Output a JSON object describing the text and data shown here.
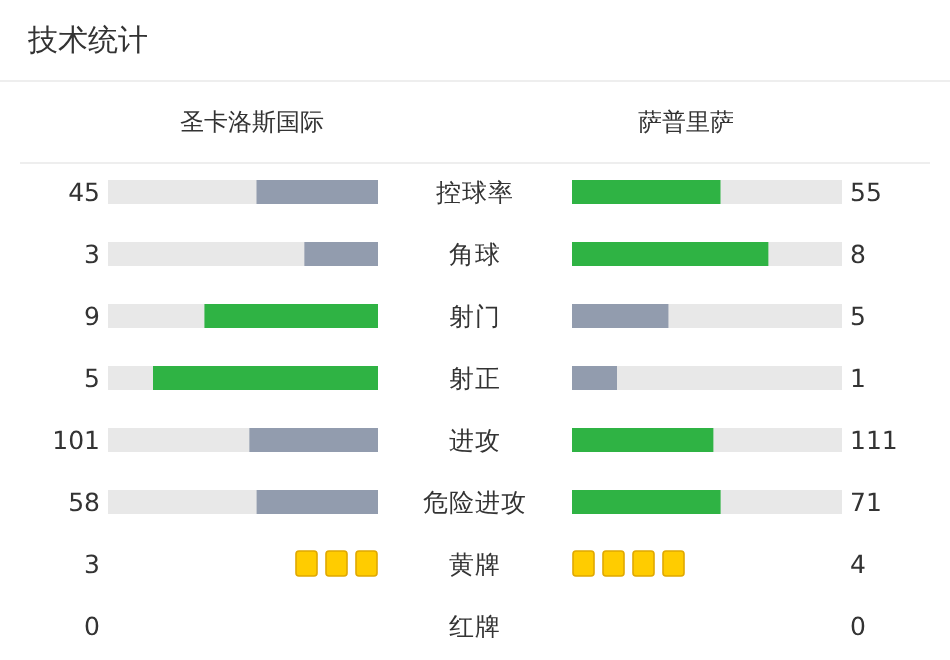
{
  "chart_data": [
    {
      "type": "other",
      "title": "技术统计",
      "categories": [
        "控球率",
        "角球",
        "射门",
        "射正",
        "进攻",
        "危险进攻"
      ],
      "data_labels": true,
      "series": [
        {
          "name": "圣卡洛斯国际",
          "colors": [
            "#929cae",
            "#929cae",
            "#2fb344",
            "#2fb344",
            "#929cae",
            "#929cae"
          ],
          "values": [
            45,
            3,
            9,
            5,
            101,
            58
          ]
        },
        {
          "name": "萨普里萨",
          "colors": [
            "#2fb344",
            "#2fb344",
            "#929cae",
            "#929cae",
            "#2fb344",
            "#2fb344"
          ],
          "values": [
            55,
            8,
            5,
            1,
            111,
            71
          ]
        }
      ]
    },
    {
      "type": "other",
      "categories": [
        "黄牌",
        "红牌"
      ],
      "data_labels": true,
      "series": [
        {
          "color": "#ffcc00",
          "values": [
            3,
            0
          ]
        },
        {
          "color": "#ffcc00",
          "values": [
            4,
            0
          ]
        }
      ]
    }
  ]
}
